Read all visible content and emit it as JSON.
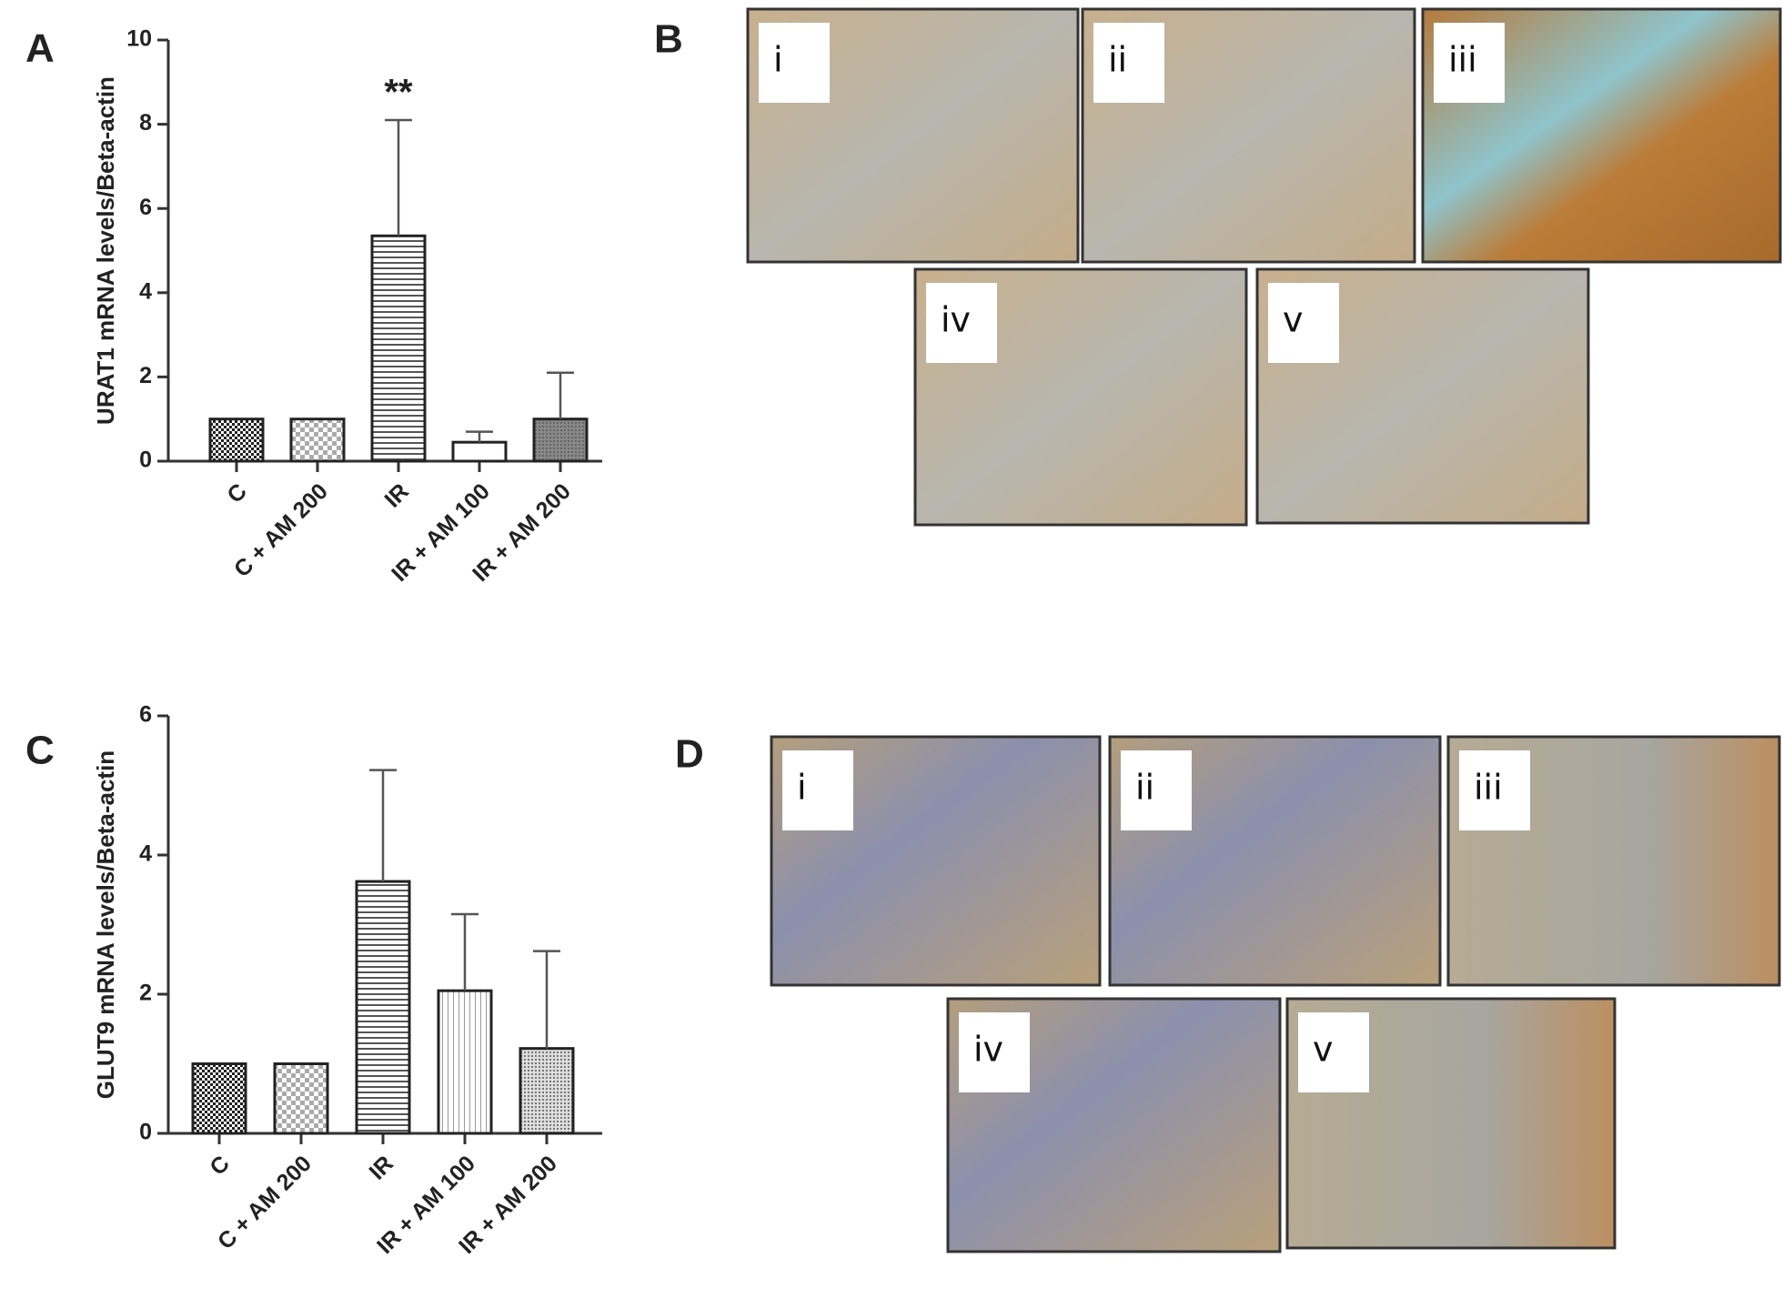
{
  "chart_data": [
    {
      "type": "bar",
      "ylabel": "URAT1 mRNA levels/Beta-actin",
      "categories": [
        "C",
        "C + AM 200",
        "IR",
        "IR + AM 100",
        "IR + AM 200"
      ],
      "values": [
        1,
        1,
        5.35,
        0.45,
        1.0
      ],
      "errors": [
        null,
        null,
        2.75,
        0.25,
        1.1
      ],
      "annotations": [
        {
          "text": "**",
          "category": "IR"
        }
      ],
      "ylim": [
        0,
        10
      ],
      "yticks": [
        0,
        2,
        4,
        6,
        8,
        10
      ]
    },
    {
      "type": "bar",
      "ylabel": "GLUT9 mRNA levels/Beta-actin",
      "categories": [
        "C",
        "C + AM 200",
        "IR",
        "IR + AM 100",
        "IR + AM 200"
      ],
      "values": [
        1,
        1,
        3.62,
        2.05,
        1.22
      ],
      "errors": [
        null,
        null,
        1.6,
        1.1,
        1.4
      ],
      "ylim": [
        0,
        6
      ],
      "yticks": [
        0,
        2,
        4,
        6
      ]
    }
  ],
  "figure": {
    "panel_A": {
      "label": "A"
    },
    "panel_B": {
      "label": "B",
      "images": [
        "i",
        "ii",
        "iii",
        "iv",
        "v"
      ]
    },
    "panel_C": {
      "label": "C"
    },
    "panel_D": {
      "label": "D",
      "images": [
        "i",
        "ii",
        "iii",
        "iv",
        "v"
      ]
    }
  }
}
